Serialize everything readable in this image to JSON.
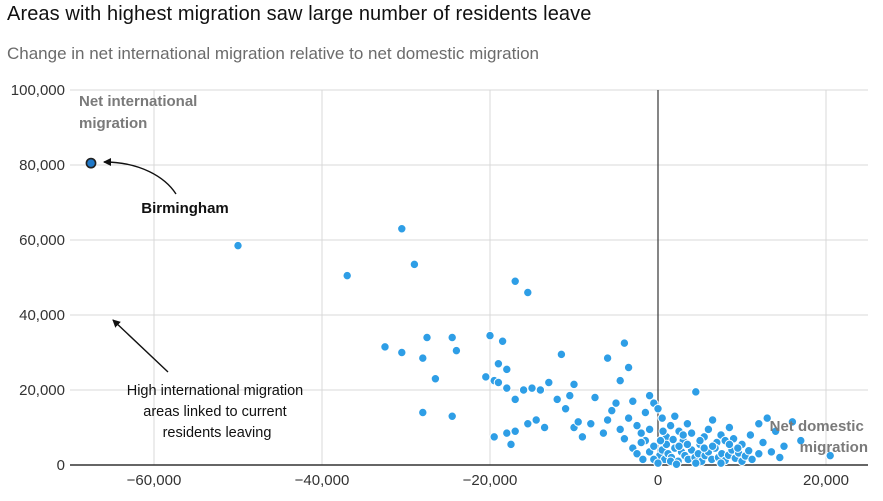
{
  "chart_data": {
    "type": "scatter",
    "title": "Areas with highest migration saw large number of residents leave",
    "subtitle": "Change in net international migration relative to net domestic migration",
    "xlim": [
      -70000,
      25000
    ],
    "ylim": [
      0,
      100000
    ],
    "x_ticks": [
      -60000,
      -40000,
      -20000,
      0,
      20000
    ],
    "x_tick_labels": [
      "−60,000",
      "−40,000",
      "−20,000",
      "0",
      "20,000"
    ],
    "y_ticks": [
      0,
      20000,
      40000,
      60000,
      80000,
      100000
    ],
    "y_tick_labels": [
      "0",
      "20,000",
      "40,000",
      "60,000",
      "80,000",
      "100,000"
    ],
    "ylabel": "Net international migration",
    "xlabel": "Net domestic migration",
    "grid": true,
    "point_color": "#2e9ee6",
    "highlight_color": "#1f78c8",
    "highlight": {
      "name": "Birmingham",
      "x": -67500,
      "y": 80500
    },
    "annotations": {
      "birmingham": "Birmingham",
      "explanation": [
        "High international migration",
        "areas linked to current",
        "residents leaving"
      ]
    },
    "points": [
      [
        -67500,
        80500
      ],
      [
        -50000,
        58500
      ],
      [
        -37000,
        50500
      ],
      [
        -30500,
        63000
      ],
      [
        -29000,
        53500
      ],
      [
        -17000,
        49000
      ],
      [
        -15500,
        46000
      ],
      [
        -32500,
        31500
      ],
      [
        -30500,
        30000
      ],
      [
        -28000,
        28500
      ],
      [
        -27500,
        34000
      ],
      [
        -26500,
        23000
      ],
      [
        -24500,
        34000
      ],
      [
        -24000,
        30500
      ],
      [
        -28000,
        14000
      ],
      [
        -24500,
        13000
      ],
      [
        -20500,
        23500
      ],
      [
        -19500,
        22500
      ],
      [
        -19000,
        22000
      ],
      [
        -20000,
        34500
      ],
      [
        -18500,
        33000
      ],
      [
        -19000,
        27000
      ],
      [
        -18000,
        25500
      ],
      [
        -18000,
        20500
      ],
      [
        -17000,
        17500
      ],
      [
        -16000,
        20000
      ],
      [
        -15000,
        20500
      ],
      [
        -14000,
        20000
      ],
      [
        -13000,
        22000
      ],
      [
        -15500,
        11000
      ],
      [
        -14500,
        12000
      ],
      [
        -13500,
        10000
      ],
      [
        -17000,
        9000
      ],
      [
        -19500,
        7500
      ],
      [
        -18000,
        8500
      ],
      [
        -17500,
        5500
      ],
      [
        -12000,
        17500
      ],
      [
        -10500,
        18500
      ],
      [
        -10000,
        21500
      ],
      [
        -11000,
        15000
      ],
      [
        -11500,
        29500
      ],
      [
        -10000,
        10000
      ],
      [
        -9500,
        11500
      ],
      [
        -9000,
        7500
      ],
      [
        -8000,
        11000
      ],
      [
        -7500,
        18000
      ],
      [
        -6000,
        28500
      ],
      [
        -4000,
        32500
      ],
      [
        -3500,
        26000
      ],
      [
        -4500,
        22500
      ],
      [
        -6500,
        8500
      ],
      [
        -6000,
        12000
      ],
      [
        -5500,
        14500
      ],
      [
        -5000,
        16500
      ],
      [
        -4500,
        9500
      ],
      [
        -3500,
        12500
      ],
      [
        -3000,
        17000
      ],
      [
        -2500,
        10500
      ],
      [
        -2000,
        8500
      ],
      [
        -1500,
        14000
      ],
      [
        -1500,
        6500
      ],
      [
        -1000,
        18500
      ],
      [
        -1000,
        3500
      ],
      [
        -500,
        16500
      ],
      [
        -500,
        5000
      ],
      [
        -4000,
        7000
      ],
      [
        -3000,
        4500
      ],
      [
        -2000,
        6000
      ],
      [
        -1000,
        9500
      ],
      [
        0,
        15000
      ],
      [
        500,
        12500
      ],
      [
        1000,
        7500
      ],
      [
        1500,
        10500
      ],
      [
        2000,
        13000
      ],
      [
        2500,
        9000
      ],
      [
        3000,
        6500
      ],
      [
        3500,
        11000
      ],
      [
        4000,
        8500
      ],
      [
        4500,
        19500
      ],
      [
        5000,
        5500
      ],
      [
        5500,
        7500
      ],
      [
        6000,
        9500
      ],
      [
        6500,
        12000
      ],
      [
        7000,
        6000
      ],
      [
        7500,
        8000
      ],
      [
        8000,
        6500
      ],
      [
        8500,
        10000
      ],
      [
        9000,
        7000
      ],
      [
        10000,
        5500
      ],
      [
        11000,
        8000
      ],
      [
        12000,
        11000
      ],
      [
        13000,
        12500
      ],
      [
        14000,
        9000
      ],
      [
        15000,
        5000
      ],
      [
        16000,
        11500
      ],
      [
        17000,
        6500
      ],
      [
        20500,
        2500
      ],
      [
        200,
        2500
      ],
      [
        500,
        4000
      ],
      [
        800,
        1500
      ],
      [
        1200,
        3000
      ],
      [
        1600,
        2000
      ],
      [
        2000,
        4500
      ],
      [
        2400,
        1000
      ],
      [
        2800,
        3500
      ],
      [
        3200,
        2500
      ],
      [
        3600,
        1500
      ],
      [
        4000,
        4000
      ],
      [
        4400,
        2000
      ],
      [
        4800,
        3000
      ],
      [
        5200,
        1000
      ],
      [
        5600,
        2500
      ],
      [
        6000,
        3500
      ],
      [
        6400,
        1500
      ],
      [
        6800,
        4500
      ],
      [
        7200,
        2000
      ],
      [
        7600,
        3000
      ],
      [
        8000,
        1200
      ],
      [
        8400,
        2600
      ],
      [
        8800,
        4000
      ],
      [
        9200,
        1800
      ],
      [
        9600,
        3200
      ],
      [
        10000,
        1000
      ],
      [
        10400,
        2400
      ],
      [
        10800,
        3800
      ],
      [
        11200,
        1500
      ],
      [
        1000,
        5500
      ],
      [
        1500,
        1000
      ],
      [
        2500,
        5000
      ],
      [
        3500,
        5500
      ],
      [
        4500,
        500
      ],
      [
        5500,
        4500
      ],
      [
        6500,
        5000
      ],
      [
        7500,
        500
      ],
      [
        8500,
        5500
      ],
      [
        9500,
        4500
      ],
      [
        -500,
        1500
      ],
      [
        0,
        500
      ],
      [
        300,
        6500
      ],
      [
        13500,
        3500
      ],
      [
        14500,
        2000
      ],
      [
        12500,
        6000
      ],
      [
        600,
        9000
      ],
      [
        1800,
        6800
      ],
      [
        3000,
        8000
      ],
      [
        -2500,
        3000
      ],
      [
        -1800,
        1500
      ],
      [
        12000,
        3000
      ],
      [
        2200,
        200
      ],
      [
        5000,
        6500
      ]
    ]
  }
}
